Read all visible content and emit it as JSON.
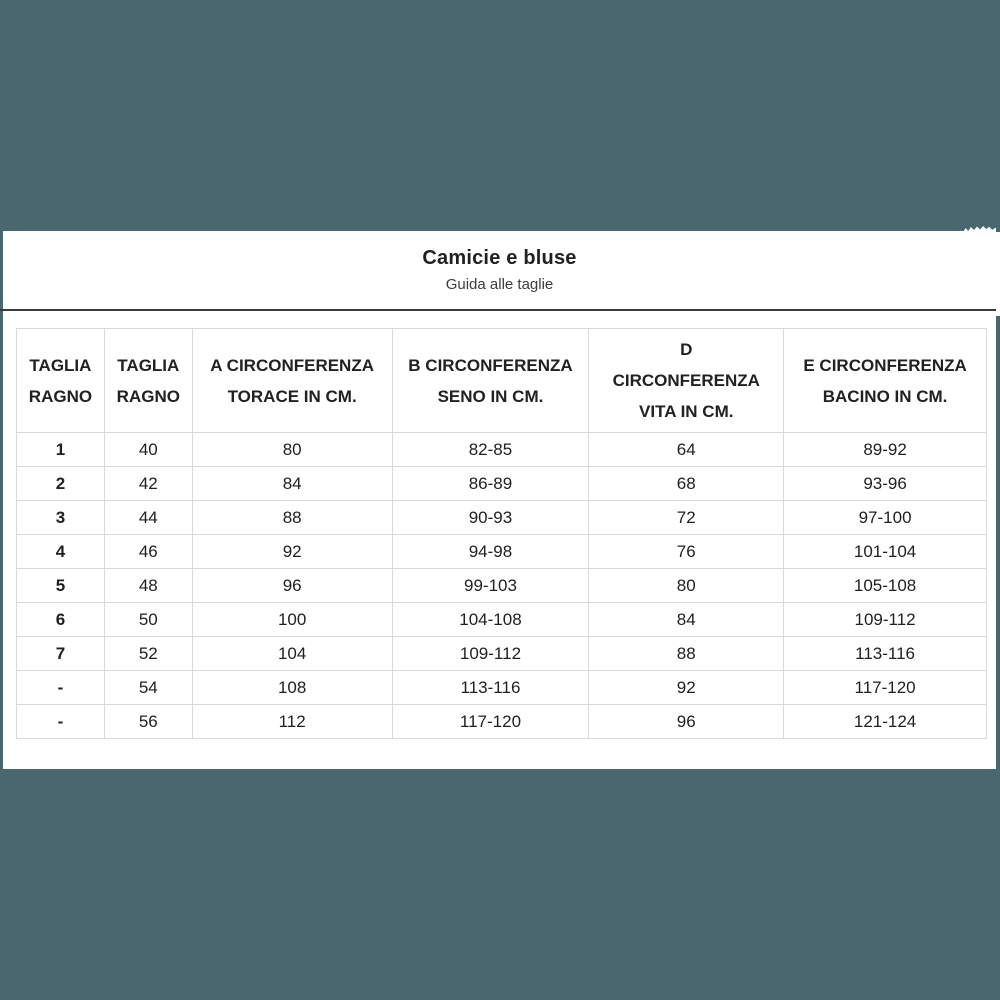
{
  "colors": {
    "background": "#4A6770",
    "panel": "#FFFFFF",
    "divider": "#3A3A3E",
    "table_border": "#D9D9D9",
    "text": "#212121"
  },
  "modal": {
    "title": "Camicie e bluse",
    "subtitle": "Guida alle taglie"
  },
  "table": {
    "columns": [
      "TAGLIA\nRAGNO",
      "TAGLIA\nRAGNO",
      "A CIRCONFERENZA\nTORACE IN CM.",
      "B CIRCONFERENZA\nSENO IN CM.",
      "D\nCIRCONFERENZA\nVITA IN CM.",
      "E CIRCONFERENZA\nBACINO IN CM."
    ],
    "rows": [
      [
        "1",
        "40",
        "80",
        "82-85",
        "64",
        "89-92"
      ],
      [
        "2",
        "42",
        "84",
        "86-89",
        "68",
        "93-96"
      ],
      [
        "3",
        "44",
        "88",
        "90-93",
        "72",
        "97-100"
      ],
      [
        "4",
        "46",
        "92",
        "94-98",
        "76",
        "101-104"
      ],
      [
        "5",
        "48",
        "96",
        "99-103",
        "80",
        "105-108"
      ],
      [
        "6",
        "50",
        "100",
        "104-108",
        "84",
        "109-112"
      ],
      [
        "7",
        "52",
        "104",
        "109-112",
        "88",
        "113-116"
      ],
      [
        "-",
        "54",
        "108",
        "113-116",
        "92",
        "117-120"
      ],
      [
        "-",
        "56",
        "112",
        "117-120",
        "96",
        "121-124"
      ]
    ]
  }
}
